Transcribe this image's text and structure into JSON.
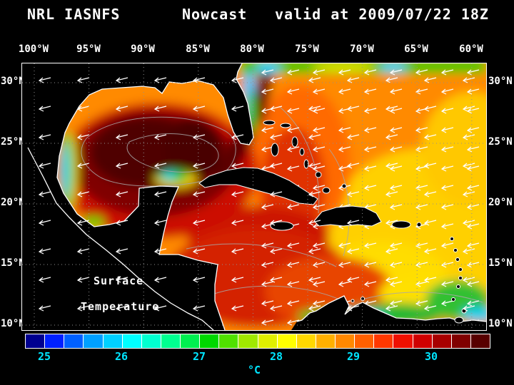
{
  "header": {
    "model": "NRL IASNFS",
    "product": "Nowcast",
    "valid": "valid at 2009/07/22 18Z"
  },
  "axes": {
    "lon_labels": [
      "100°W",
      "95°W",
      "90°W",
      "85°W",
      "80°W",
      "75°W",
      "70°W",
      "65°W",
      "60°W"
    ],
    "lat_labels": [
      "30°N",
      "25°N",
      "20°N",
      "15°N",
      "10°N"
    ]
  },
  "map_overlay": {
    "line1": "Surface",
    "line2": "Temperature"
  },
  "colorbar": {
    "tick_labels": [
      "25",
      "26",
      "27",
      "28",
      "29",
      "30"
    ],
    "unit": "°C",
    "label_color": "#00e5ff",
    "scale_min": 24.75,
    "scale_max": 30.75,
    "colors": [
      "#000090",
      "#0020ff",
      "#0060ff",
      "#00a0ff",
      "#00d0ff",
      "#00ffff",
      "#00ffd0",
      "#00ff90",
      "#00f050",
      "#00d800",
      "#50e000",
      "#a0e800",
      "#e0f000",
      "#ffff00",
      "#ffd800",
      "#ffb000",
      "#ff8800",
      "#ff6000",
      "#ff3800",
      "#f01000",
      "#d00000",
      "#a80000",
      "#800000",
      "#580000"
    ]
  },
  "colors": {
    "background": "#000000",
    "text": "#ffffff",
    "coastline": "#ffffff",
    "grid": "#909090"
  }
}
